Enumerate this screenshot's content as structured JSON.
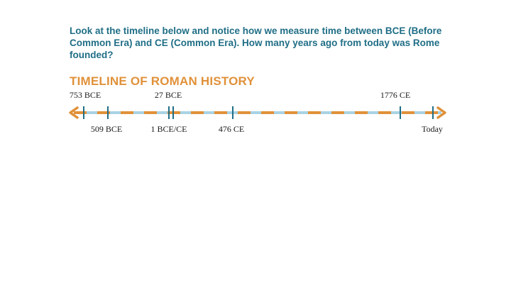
{
  "question": {
    "text": "Look at the timeline below and notice how we measure time between BCE (Before Common Era) and CE (Common Era). How many years ago from today was Rome founded?"
  },
  "timeline": {
    "title": "TIMELINE OF ROMAN HISTORY",
    "events": [
      {
        "id": "753-bce",
        "label": "753 BCE",
        "year": -753,
        "position": "above"
      },
      {
        "id": "509-bce",
        "label": "509 BCE",
        "year": -509,
        "position": "below"
      },
      {
        "id": "27-bce",
        "label": "27 BCE",
        "year": -27,
        "position": "above"
      },
      {
        "id": "1-bce-ce",
        "label": "1 BCE/CE",
        "year": 0,
        "position": "below"
      },
      {
        "id": "476-ce",
        "label": "476 CE",
        "year": 476,
        "position": "below"
      },
      {
        "id": "1776-ce",
        "label": "1776 CE",
        "year": 1776,
        "position": "above"
      },
      {
        "id": "today",
        "label": "Today",
        "position": "below"
      }
    ],
    "colors": {
      "title": "#e0913a",
      "question": "#1f6e86",
      "line_base": "#a9d3e4",
      "line_dash": "#e0913a",
      "tick": "#1f6e86",
      "arrow": "#e0913a"
    }
  }
}
